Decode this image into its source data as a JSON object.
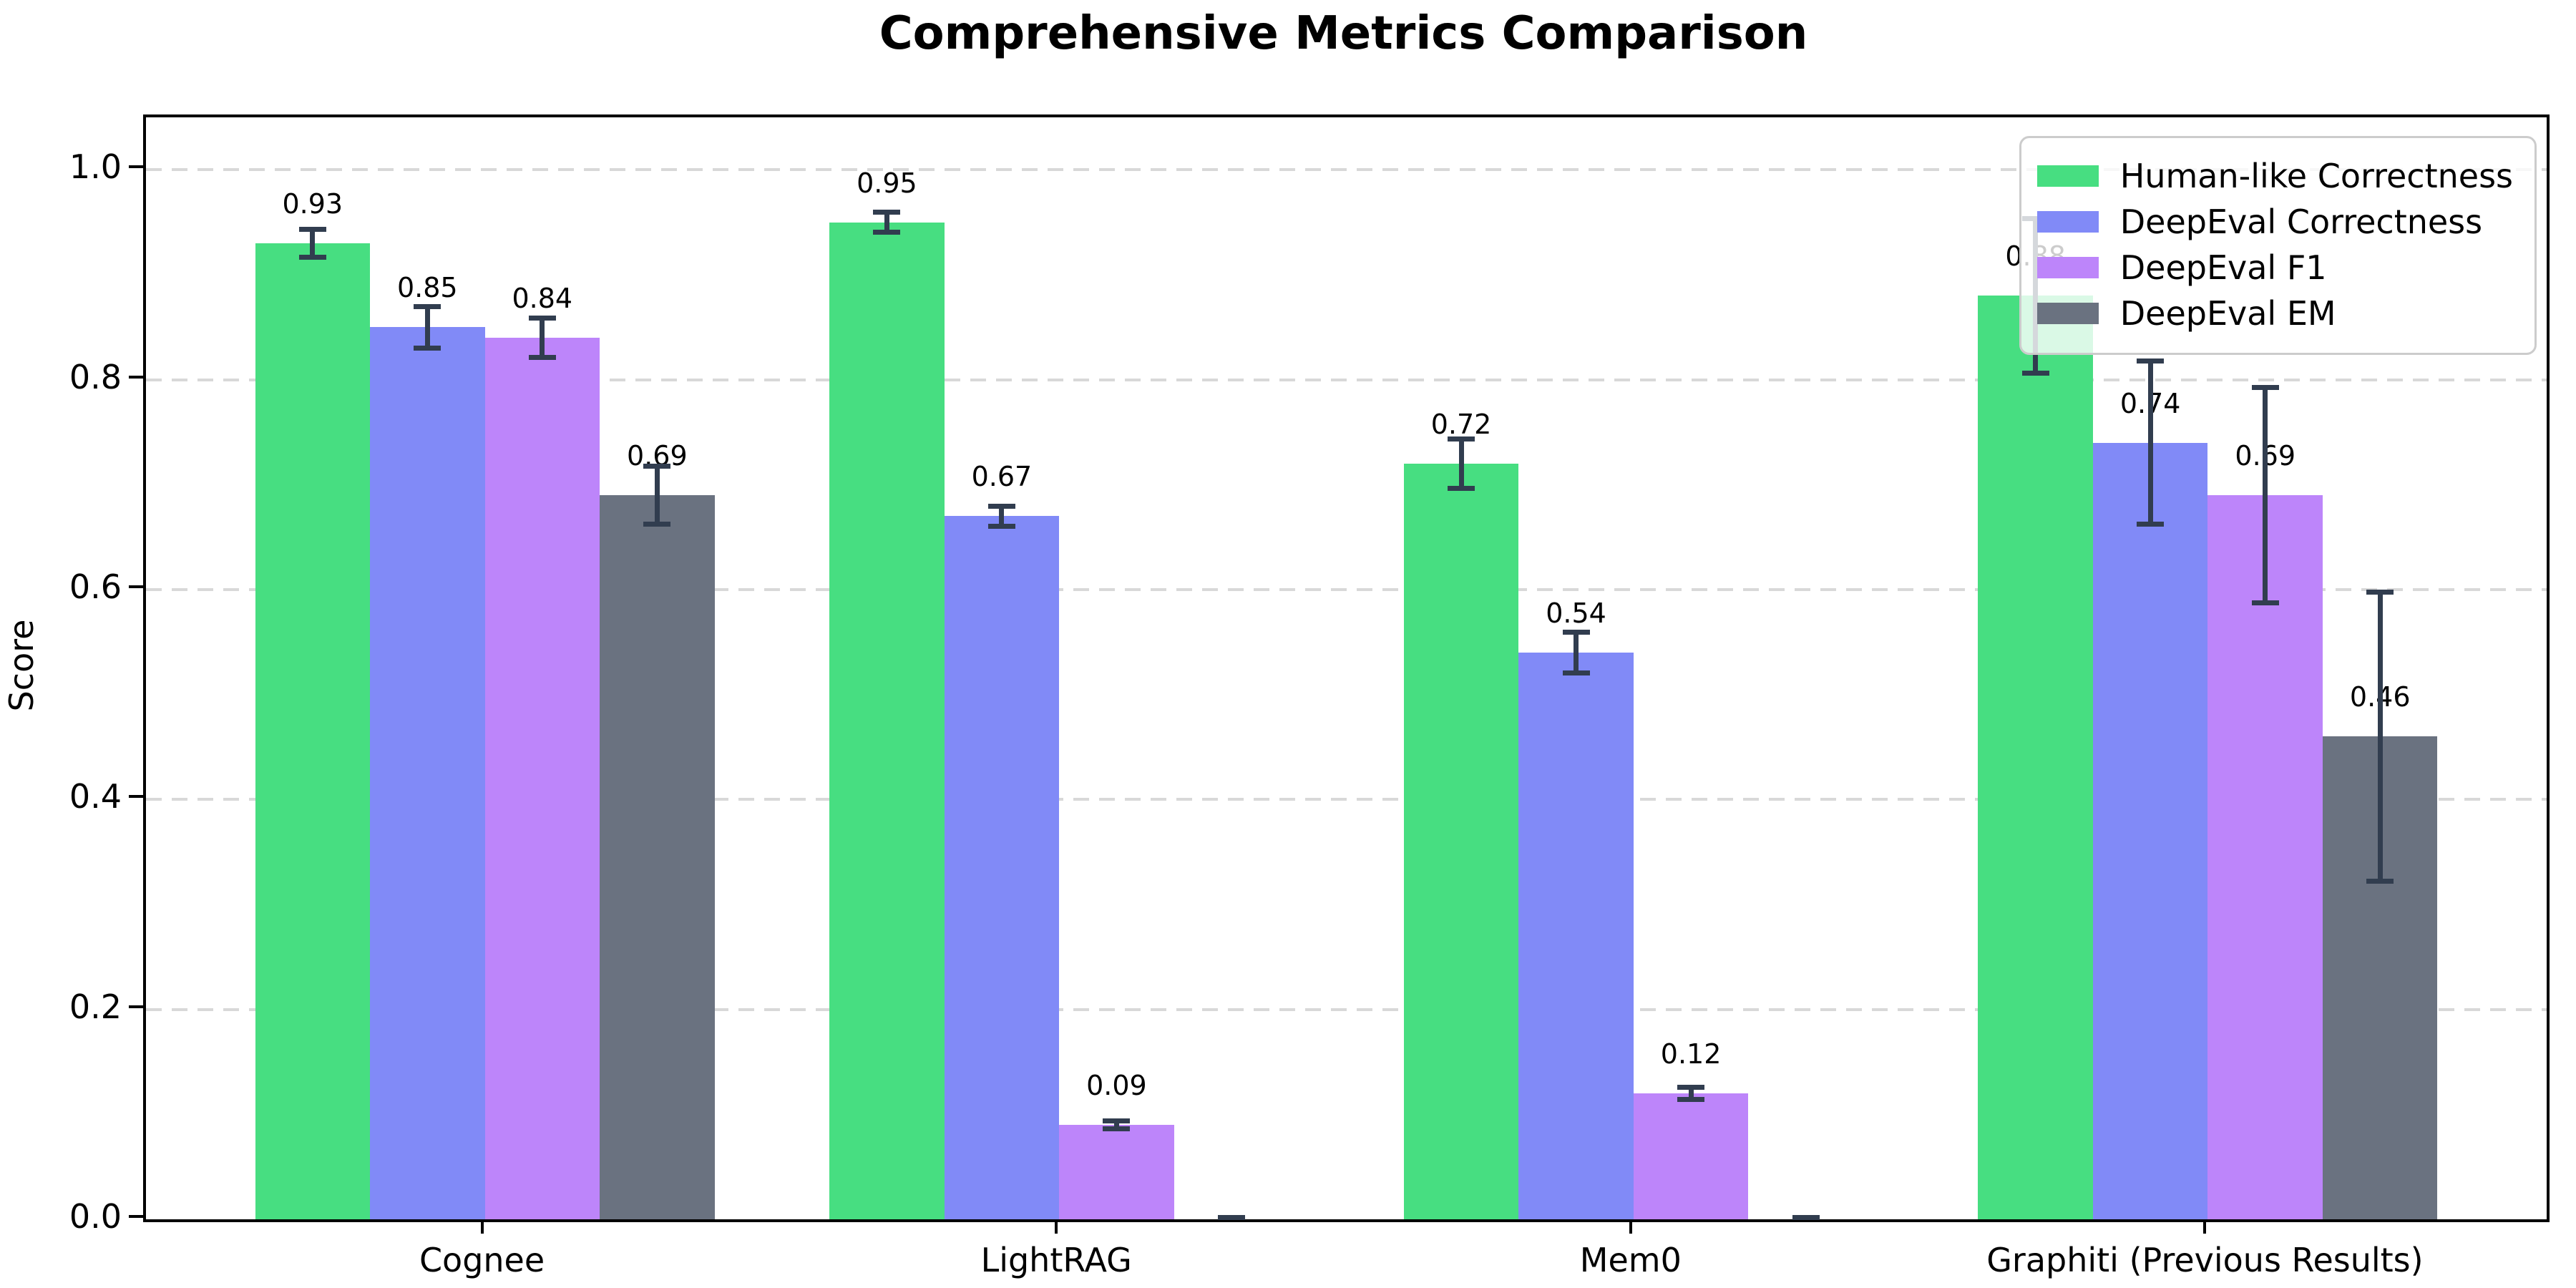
{
  "chart_data": {
    "type": "bar",
    "title": "Comprehensive Metrics Comparison",
    "ylabel": "Score",
    "xlabel": "",
    "categories": [
      "Cognee",
      "LightRAG",
      "Mem0",
      "Graphiti (Previous Results)"
    ],
    "series": [
      {
        "name": "Human-like Correctness",
        "color": "#47de81",
        "values": [
          0.93,
          0.95,
          0.72,
          0.88
        ],
        "errors": [
          0.016,
          0.012,
          0.026,
          0.076
        ],
        "labels": [
          "0.93",
          "0.95",
          "0.72",
          "0.88"
        ]
      },
      {
        "name": "DeepEval Correctness",
        "color": "#818af7",
        "values": [
          0.85,
          0.67,
          0.54,
          0.74
        ],
        "errors": [
          0.022,
          0.012,
          0.022,
          0.08
        ],
        "labels": [
          "0.85",
          "0.67",
          "0.54",
          "0.74"
        ]
      },
      {
        "name": "DeepEval F1",
        "color": "#bd85fa",
        "values": [
          0.84,
          0.09,
          0.12,
          0.69
        ],
        "errors": [
          0.021,
          0.006,
          0.008,
          0.105
        ],
        "labels": [
          "0.84",
          "0.09",
          "0.12",
          "0.69"
        ]
      },
      {
        "name": "DeepEval EM",
        "color": "#6a7280",
        "values": [
          0.69,
          0.0,
          0.0,
          0.46
        ],
        "errors": [
          0.03,
          0.004,
          0.004,
          0.14
        ],
        "labels": [
          "0.69",
          "",
          "",
          "0.46"
        ]
      }
    ],
    "yticks": [
      "0.0",
      "0.2",
      "0.4",
      "0.6",
      "0.8",
      "1.0"
    ],
    "ylim": [
      0,
      1.05
    ],
    "grid": "horizontal-dashed",
    "gridline_color": "#d8d8d8",
    "errorbar_color": "#313d4f",
    "legend_position": "upper right"
  }
}
